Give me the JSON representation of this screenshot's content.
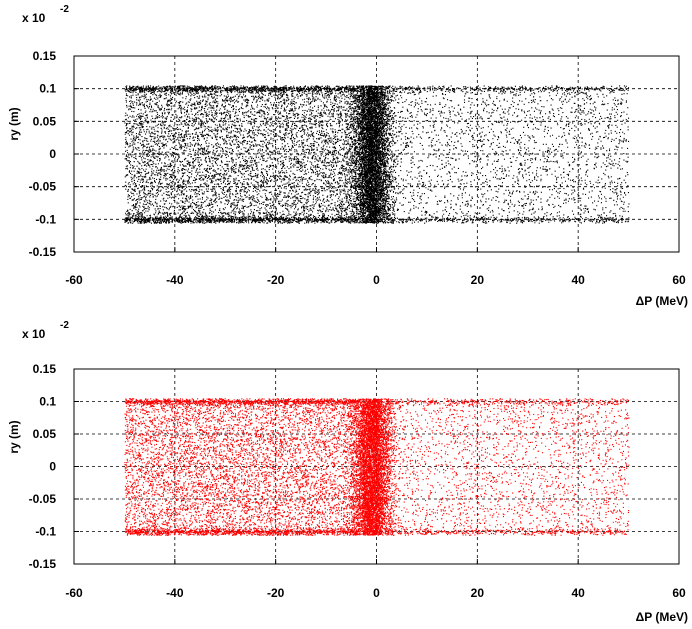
{
  "chart_data": [
    {
      "type": "scatter",
      "xlabel": "ΔP (MeV)",
      "ylabel": "ry (m)",
      "y_multiplier": "x 10",
      "y_exponent": "-2",
      "xlim": [
        -60,
        60
      ],
      "ylim": [
        -0.15,
        0.15
      ],
      "xticks": [
        "-60",
        "-40",
        "-20",
        "0",
        "20",
        "40",
        "60"
      ],
      "yticks": [
        "0.15",
        "0.1",
        "0.05",
        "0",
        "-0.05",
        "-0.1",
        "-0.15"
      ],
      "grid": true,
      "color": "#000000",
      "distribution": {
        "x_range": [
          -50,
          50
        ],
        "y_range": [
          -0.105,
          0.105
        ],
        "dense_core_x": [
          -4,
          2
        ],
        "dense_edges_y": [
          -0.1,
          0.1
        ],
        "density_left_of_core": "high",
        "density_right_of_core": "low"
      }
    },
    {
      "type": "scatter",
      "xlabel": "ΔP (MeV)",
      "ylabel": "ry (m)",
      "y_multiplier": "x 10",
      "y_exponent": "-2",
      "xlim": [
        -60,
        60
      ],
      "ylim": [
        -0.15,
        0.15
      ],
      "xticks": [
        "-60",
        "-40",
        "-20",
        "0",
        "20",
        "40",
        "60"
      ],
      "yticks": [
        "0.15",
        "0.1",
        "0.05",
        "0",
        "-0.05",
        "-0.1",
        "-0.15"
      ],
      "grid": true,
      "color": "#ff0000",
      "distribution": {
        "x_range": [
          -50,
          50
        ],
        "y_range": [
          -0.105,
          0.105
        ],
        "dense_core_x": [
          -4,
          2
        ],
        "dense_edges_y": [
          -0.1,
          0.1
        ],
        "density_left_of_core": "high",
        "density_right_of_core": "low"
      }
    }
  ]
}
